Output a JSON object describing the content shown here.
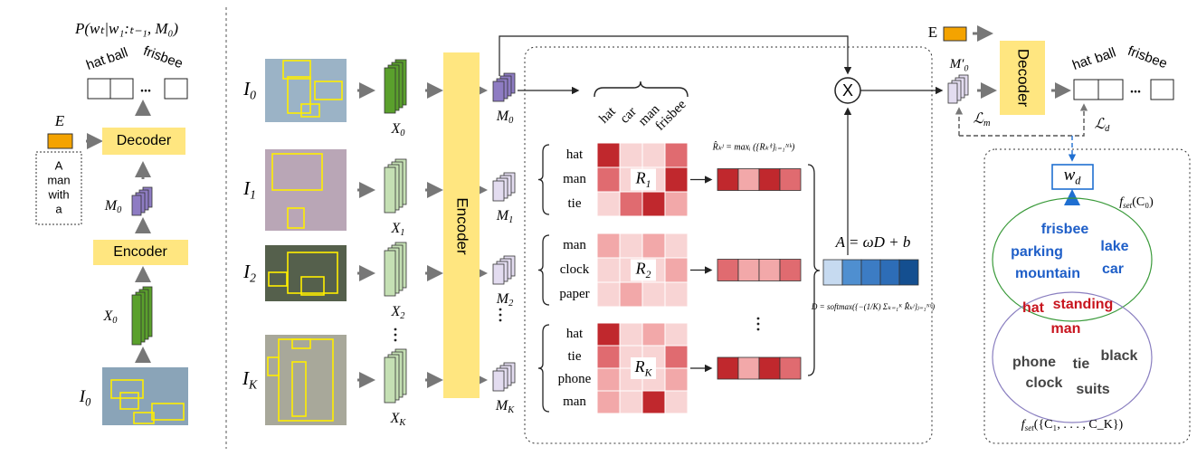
{
  "left": {
    "probability": "P(wₜ|w₁:ₜ₋₁, M₀)",
    "words": [
      "hat",
      "ball",
      "frisbee"
    ],
    "ellipsis": "...",
    "embedding": "E",
    "decoder": "Decoder",
    "prompt": [
      "A",
      "man",
      "with",
      "a"
    ],
    "memory": {
      "base": "M",
      "sub": "0"
    },
    "encoder": "Encoder",
    "feature": {
      "base": "X",
      "sub": "0"
    },
    "image": {
      "base": "I",
      "sub": "0"
    }
  },
  "main": {
    "images": [
      {
        "base": "I",
        "sub": "0"
      },
      {
        "base": "I",
        "sub": "1"
      },
      {
        "base": "I",
        "sub": "2"
      },
      {
        "base": "I",
        "sub": "K"
      }
    ],
    "features": [
      {
        "base": "X",
        "sub": "0"
      },
      {
        "base": "X",
        "sub": "1"
      },
      {
        "base": "X",
        "sub": "2"
      },
      {
        "base": "X",
        "sub": "K"
      }
    ],
    "encoder": "Encoder",
    "memories": [
      {
        "base": "M",
        "sub": "0"
      },
      {
        "base": "M",
        "sub": "1"
      },
      {
        "base": "M",
        "sub": "2"
      },
      {
        "base": "M",
        "sub": "K"
      }
    ],
    "columns": [
      "hat",
      "car",
      "man",
      "frisbee"
    ],
    "rows": [
      [
        "hat",
        "man",
        "tie"
      ],
      [
        "man",
        "clock",
        "paper"
      ],
      [
        "hat",
        "tie",
        "phone",
        "man"
      ]
    ],
    "relevance": [
      {
        "base": "R",
        "sub": "1"
      },
      {
        "base": "R",
        "sub": "2"
      },
      {
        "base": "R",
        "sub": "K"
      }
    ],
    "max_formula": "R̂ₖʲ = maxᵢ ({Rₖⁱʲ}ᵢ₌₁ᴺᵏ)",
    "multiply": "X",
    "linear": "A = ωD + b",
    "softmax": "D = softmax({−(1/K) Σₖ₌₁ᴷ R̂ₖʲ}ⱼ₌₁ᴺᵇ)"
  },
  "right": {
    "embedding": "E",
    "decoder": "Decoder",
    "memory": {
      "base": "M′",
      "sub": "0"
    },
    "loss_m": {
      "base": "ℒ",
      "sub": "m"
    },
    "loss_d": {
      "base": "ℒ",
      "sub": "d"
    },
    "words": [
      "hat",
      "ball",
      "frisbee"
    ],
    "ellipsis": "...",
    "word_dist": {
      "base": "w",
      "sub": "d"
    },
    "set_c0": {
      "base": "f",
      "sub": "set",
      "rest": "(C₀)"
    },
    "set_top": [
      "frisbee",
      "parking",
      "lake",
      "mountain",
      "car"
    ],
    "set_shared": [
      "hat",
      "standing",
      "man"
    ],
    "set_bottom": [
      "phone",
      "tie",
      "black",
      "clock",
      "suits"
    ],
    "set_ck": {
      "base": "f",
      "sub": "set",
      "rest": "({C₁, . . . , C_K})"
    }
  }
}
